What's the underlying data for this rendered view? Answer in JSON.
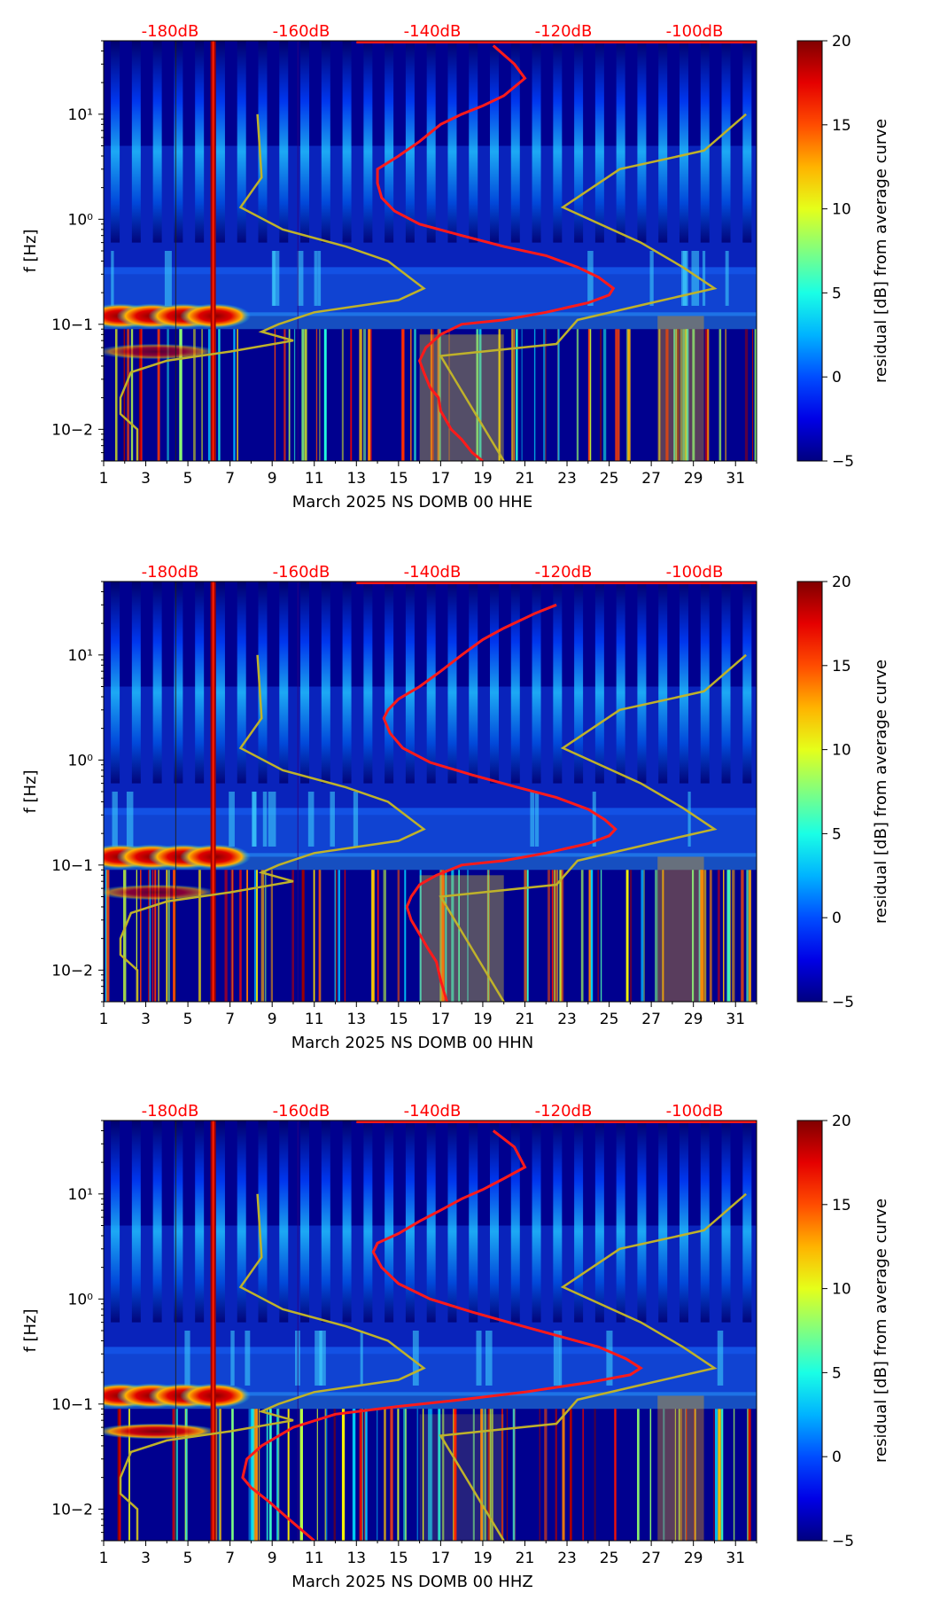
{
  "chart_data": [
    {
      "type": "heatmap",
      "channel": "HHE",
      "xlabel": "March 2025 NS DOMB 00 HHE",
      "ylabel": "f [Hz]",
      "colorbar_label": "residual [dB] from average curve",
      "x_ticks": [
        "1",
        "3",
        "5",
        "7",
        "9",
        "11",
        "13",
        "15",
        "17",
        "19",
        "21",
        "23",
        "25",
        "27",
        "29",
        "31"
      ],
      "xlim": [
        1,
        32
      ],
      "y_ticks": [
        "10−2",
        "10−1",
        "10⁰",
        "10¹"
      ],
      "ylim_hz": [
        0.005,
        50
      ],
      "colorbar_ticks": [
        "−5",
        "0",
        "5",
        "10",
        "15",
        "20"
      ],
      "clim": [
        -5,
        20
      ],
      "db_scale_labels": [
        "-180dB",
        "-160dB",
        "-140dB",
        "-120dB",
        "-100dB"
      ],
      "db_scale_color": "#ff0000",
      "nlnm_nhnm_color": "#bfb22a",
      "average_curve_color": "#ff1a1a",
      "average_curve": [
        [
          19.5,
          45
        ],
        [
          20.5,
          30
        ],
        [
          21,
          22
        ],
        [
          20,
          15
        ],
        [
          19,
          12
        ],
        [
          18,
          10
        ],
        [
          17,
          8
        ],
        [
          16,
          5.5
        ],
        [
          15,
          4
        ],
        [
          14,
          3
        ],
        [
          14,
          2.2
        ],
        [
          14.2,
          1.6
        ],
        [
          14.8,
          1.2
        ],
        [
          16,
          0.9
        ],
        [
          18,
          0.7
        ],
        [
          20,
          0.55
        ],
        [
          22,
          0.45
        ],
        [
          23.5,
          0.35
        ],
        [
          24.5,
          0.28
        ],
        [
          25.2,
          0.22
        ],
        [
          25,
          0.19
        ],
        [
          24,
          0.16
        ],
        [
          22,
          0.13
        ],
        [
          20,
          0.11
        ],
        [
          18,
          0.1
        ],
        [
          17,
          0.08
        ],
        [
          16.3,
          0.06
        ],
        [
          16,
          0.045
        ],
        [
          16.2,
          0.035
        ],
        [
          16.5,
          0.025
        ],
        [
          16.9,
          0.02
        ],
        [
          17,
          0.015
        ],
        [
          17.5,
          0.01
        ],
        [
          18,
          0.008
        ],
        [
          18.5,
          0.006
        ],
        [
          19,
          0.005
        ]
      ]
    },
    {
      "type": "heatmap",
      "channel": "HHN",
      "xlabel": "March 2025 NS DOMB 00 HHN",
      "ylabel": "f [Hz]",
      "colorbar_label": "residual [dB] from average curve",
      "x_ticks": [
        "1",
        "3",
        "5",
        "7",
        "9",
        "11",
        "13",
        "15",
        "17",
        "19",
        "21",
        "23",
        "25",
        "27",
        "29",
        "31"
      ],
      "xlim": [
        1,
        32
      ],
      "y_ticks": [
        "10−2",
        "10−1",
        "10⁰",
        "10¹"
      ],
      "ylim_hz": [
        0.005,
        50
      ],
      "colorbar_ticks": [
        "−5",
        "0",
        "5",
        "10",
        "15",
        "20"
      ],
      "clim": [
        -5,
        20
      ],
      "db_scale_labels": [
        "-180dB",
        "-160dB",
        "-140dB",
        "-120dB",
        "-100dB"
      ],
      "db_scale_color": "#ff0000",
      "nlnm_nhnm_color": "#bfb22a",
      "average_curve_color": "#ff1a1a",
      "average_curve": [
        [
          22.5,
          30
        ],
        [
          21.5,
          25
        ],
        [
          20,
          18
        ],
        [
          19,
          14
        ],
        [
          18,
          10
        ],
        [
          17,
          7
        ],
        [
          16,
          5
        ],
        [
          15,
          3.8
        ],
        [
          14.5,
          3
        ],
        [
          14.3,
          2.5
        ],
        [
          14.6,
          1.8
        ],
        [
          15.2,
          1.3
        ],
        [
          16.5,
          0.95
        ],
        [
          18.5,
          0.72
        ],
        [
          20.5,
          0.56
        ],
        [
          22.5,
          0.44
        ],
        [
          24,
          0.34
        ],
        [
          24.8,
          0.27
        ],
        [
          25.3,
          0.22
        ],
        [
          25,
          0.19
        ],
        [
          24,
          0.16
        ],
        [
          22,
          0.13
        ],
        [
          20,
          0.11
        ],
        [
          18,
          0.1
        ],
        [
          16.8,
          0.08
        ],
        [
          16,
          0.065
        ],
        [
          15.6,
          0.05
        ],
        [
          15.4,
          0.04
        ],
        [
          15.6,
          0.03
        ],
        [
          16,
          0.022
        ],
        [
          16.4,
          0.016
        ],
        [
          16.8,
          0.012
        ],
        [
          17,
          0.008
        ],
        [
          17.3,
          0.005
        ]
      ]
    },
    {
      "type": "heatmap",
      "channel": "HHZ",
      "xlabel": "March 2025 NS DOMB 00 HHZ",
      "ylabel": "f [Hz]",
      "colorbar_label": "residual [dB] from average curve",
      "x_ticks": [
        "1",
        "3",
        "5",
        "7",
        "9",
        "11",
        "13",
        "15",
        "17",
        "19",
        "21",
        "23",
        "25",
        "27",
        "29",
        "31"
      ],
      "xlim": [
        1,
        32
      ],
      "y_ticks": [
        "10−2",
        "10−1",
        "10⁰",
        "10¹"
      ],
      "ylim_hz": [
        0.005,
        50
      ],
      "colorbar_ticks": [
        "−5",
        "0",
        "5",
        "10",
        "15",
        "20"
      ],
      "clim": [
        -5,
        20
      ],
      "db_scale_labels": [
        "-180dB",
        "-160dB",
        "-140dB",
        "-120dB",
        "-100dB"
      ],
      "db_scale_color": "#ff0000",
      "nlnm_nhnm_color": "#bfb22a",
      "average_curve_color": "#ff1a1a",
      "average_curve": [
        [
          19.5,
          40
        ],
        [
          20.5,
          28
        ],
        [
          21,
          18
        ],
        [
          20,
          14
        ],
        [
          19,
          11
        ],
        [
          18,
          9
        ],
        [
          17,
          7
        ],
        [
          16,
          5.5
        ],
        [
          15,
          4.2
        ],
        [
          14,
          3.4
        ],
        [
          13.8,
          2.8
        ],
        [
          14.2,
          2.0
        ],
        [
          15,
          1.4
        ],
        [
          16.5,
          1.0
        ],
        [
          18.5,
          0.75
        ],
        [
          20.5,
          0.58
        ],
        [
          22.5,
          0.45
        ],
        [
          24.5,
          0.35
        ],
        [
          25.8,
          0.27
        ],
        [
          26.5,
          0.22
        ],
        [
          26,
          0.19
        ],
        [
          24,
          0.16
        ],
        [
          21,
          0.13
        ],
        [
          18,
          0.11
        ],
        [
          15,
          0.095
        ],
        [
          12,
          0.08
        ],
        [
          10,
          0.06
        ],
        [
          8.5,
          0.04
        ],
        [
          7.8,
          0.03
        ],
        [
          7.6,
          0.02
        ],
        [
          8,
          0.016
        ],
        [
          8.8,
          0.012
        ],
        [
          9.8,
          0.008
        ],
        [
          11,
          0.005
        ]
      ]
    }
  ]
}
